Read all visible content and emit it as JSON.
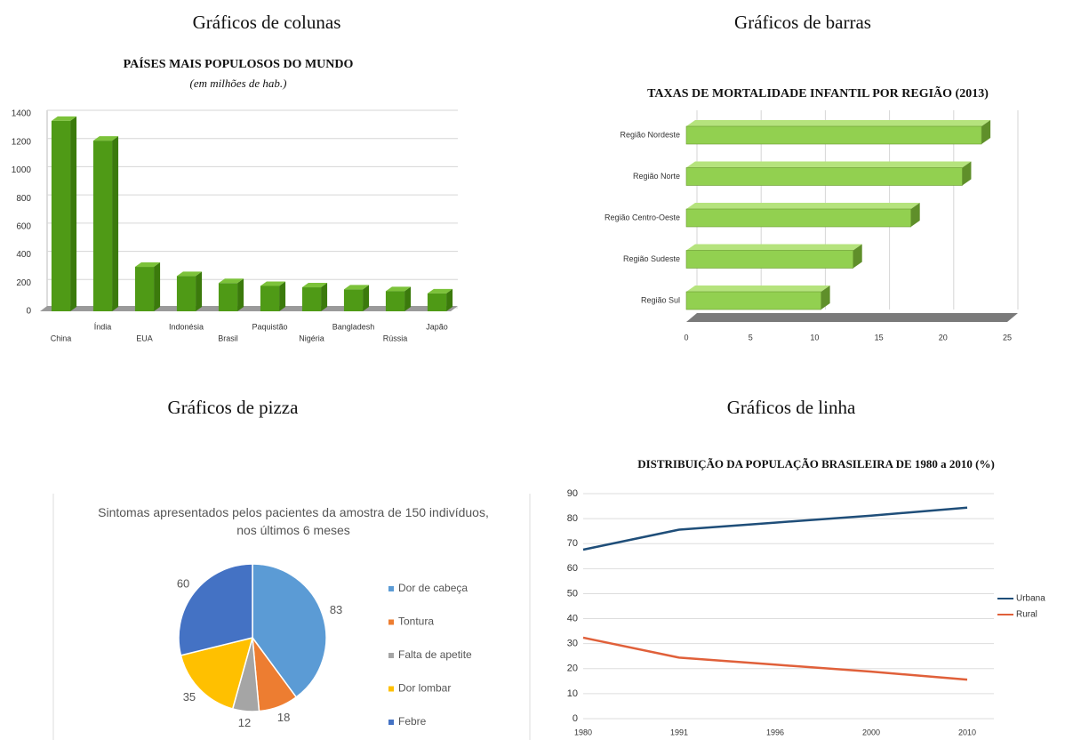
{
  "chart_data": [
    {
      "type": "column3d",
      "heading": "Gráficos de colunas",
      "title": "PAÍSES MAIS POPULOSOS DO MUNDO",
      "subtitle": "(em milhões de hab.)",
      "categories": [
        "China",
        "Índia",
        "EUA",
        "Indonésia",
        "Brasil",
        "Paquistão",
        "Nigéria",
        "Bangladesh",
        "Rússia",
        "Japão"
      ],
      "values": [
        1350,
        1210,
        315,
        250,
        200,
        180,
        170,
        155,
        143,
        127
      ],
      "color": "#4f9a16",
      "ylim": [
        0,
        1400
      ],
      "yticks": [
        0,
        200,
        400,
        600,
        800,
        1000,
        1200,
        1400
      ],
      "grid": true
    },
    {
      "type": "hbar3d",
      "heading": "Gráficos de barras",
      "title": "TAXAS DE MORTALIDADE INFANTIL POR REGIÃO (2013)",
      "categories": [
        "Região Nordeste",
        "Região Norte",
        "Região Centro-Oeste",
        "Região Sudeste",
        "Região Sul"
      ],
      "values": [
        23,
        21.5,
        17.5,
        13,
        10.5
      ],
      "color": "#92d050",
      "xlim": [
        0,
        25
      ],
      "xticks": [
        0,
        5,
        10,
        15,
        20,
        25
      ],
      "grid": true
    },
    {
      "type": "pie",
      "heading": "Gráficos de pizza",
      "title": "Sintomas apresentados pelos pacientes da amostra de 150 indivíduos, nos últimos 6 meses",
      "categories": [
        "Dor de cabeça",
        "Tontura",
        "Falta de apetite",
        "Dor lombar",
        "Febre"
      ],
      "values": [
        83,
        18,
        12,
        35,
        60
      ],
      "colors": [
        "#5b9bd5",
        "#ed7d31",
        "#a5a5a5",
        "#ffc000",
        "#4472c4"
      ],
      "legend": "right"
    },
    {
      "type": "line",
      "heading": "Gráficos de linha",
      "title": "DISTRIBUIÇÃO DA POPULAÇÃO BRASILEIRA DE 1980 a 2010 (%)",
      "categories": [
        "1980",
        "1991",
        "1996",
        "2000",
        "2010"
      ],
      "series": [
        {
          "name": "Urbana",
          "color": "#1f4e79",
          "values": [
            67.6,
            75.6,
            78.4,
            81.2,
            84.4
          ]
        },
        {
          "name": "Rural",
          "color": "#e0603a",
          "values": [
            32.4,
            24.4,
            21.6,
            18.8,
            15.6
          ]
        }
      ],
      "ylim": [
        0,
        90
      ],
      "yticks": [
        0,
        10,
        20,
        30,
        40,
        50,
        60,
        70,
        80,
        90
      ],
      "grid": true,
      "legend": "right"
    }
  ]
}
